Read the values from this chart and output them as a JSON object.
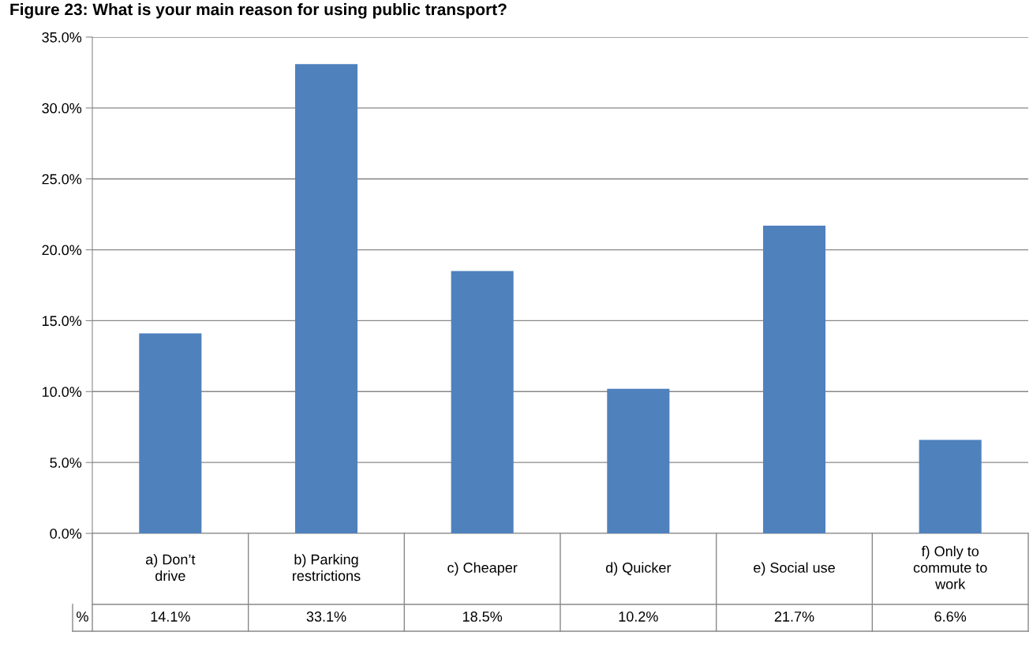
{
  "chart_data": {
    "type": "bar",
    "title": "Figure 23: What is your main reason for using public transport?",
    "categories": [
      "a) Don’t drive",
      "b) Parking restrictions",
      "c) Cheaper",
      "d) Quicker",
      "e) Social use",
      "f) Only to commute to work"
    ],
    "series": [
      {
        "name": "%",
        "color": "#4f81bd",
        "values": [
          14.1,
          33.1,
          18.5,
          10.2,
          21.7,
          6.6
        ],
        "value_labels": [
          "14.1%",
          "33.1%",
          "18.5%",
          "10.2%",
          "21.7%",
          "6.6%"
        ]
      }
    ],
    "ylim": [
      0,
      35
    ],
    "yticks": [
      {
        "value": 0,
        "label": "0.0%"
      },
      {
        "value": 5,
        "label": "5.0%"
      },
      {
        "value": 10,
        "label": "10.0%"
      },
      {
        "value": 15,
        "label": "15.0%"
      },
      {
        "value": 20,
        "label": "20.0%"
      },
      {
        "value": 25,
        "label": "25.0%"
      },
      {
        "value": 30,
        "label": "30.0%"
      },
      {
        "value": 35,
        "label": "35.0%"
      }
    ],
    "grid": "y",
    "legend": false
  }
}
